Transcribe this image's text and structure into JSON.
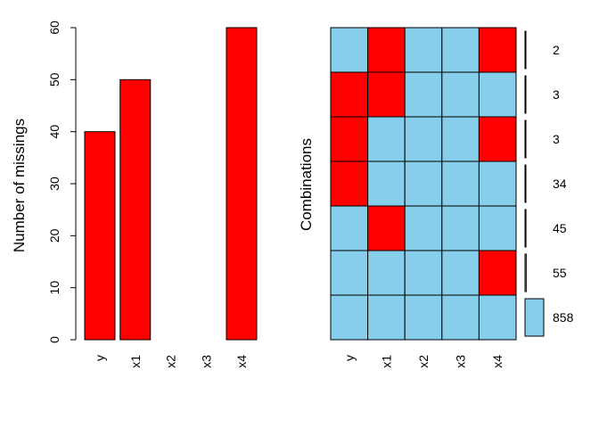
{
  "colors": {
    "missing": "#ff0000",
    "observed": "#87ceeb",
    "stroke": "#000000"
  },
  "chart_data": [
    {
      "type": "bar",
      "categories": [
        "y",
        "x1",
        "x2",
        "x3",
        "x4"
      ],
      "values": [
        40,
        50,
        0,
        0,
        60
      ],
      "ylabel": "Number of missings",
      "xlabel": "",
      "ylim": [
        0,
        60
      ],
      "yticks": [
        "0",
        "10",
        "20",
        "30",
        "40",
        "50",
        "60"
      ],
      "grid": false
    },
    {
      "type": "heatmap",
      "columns": [
        "y",
        "x1",
        "x2",
        "x3",
        "x4"
      ],
      "ylabel": "Combinations",
      "rows": [
        {
          "pattern": [
            0,
            1,
            0,
            0,
            1
          ],
          "count": "2"
        },
        {
          "pattern": [
            1,
            1,
            0,
            0,
            0
          ],
          "count": "3"
        },
        {
          "pattern": [
            1,
            0,
            0,
            0,
            1
          ],
          "count": "3"
        },
        {
          "pattern": [
            1,
            0,
            0,
            0,
            0
          ],
          "count": "34"
        },
        {
          "pattern": [
            0,
            1,
            0,
            0,
            0
          ],
          "count": "45"
        },
        {
          "pattern": [
            0,
            0,
            0,
            0,
            1
          ],
          "count": "55"
        },
        {
          "pattern": [
            0,
            0,
            0,
            0,
            0
          ],
          "count": "858"
        }
      ],
      "legend": "1 = missing (red), 0 = observed (sky blue); side bars show combination counts"
    }
  ]
}
